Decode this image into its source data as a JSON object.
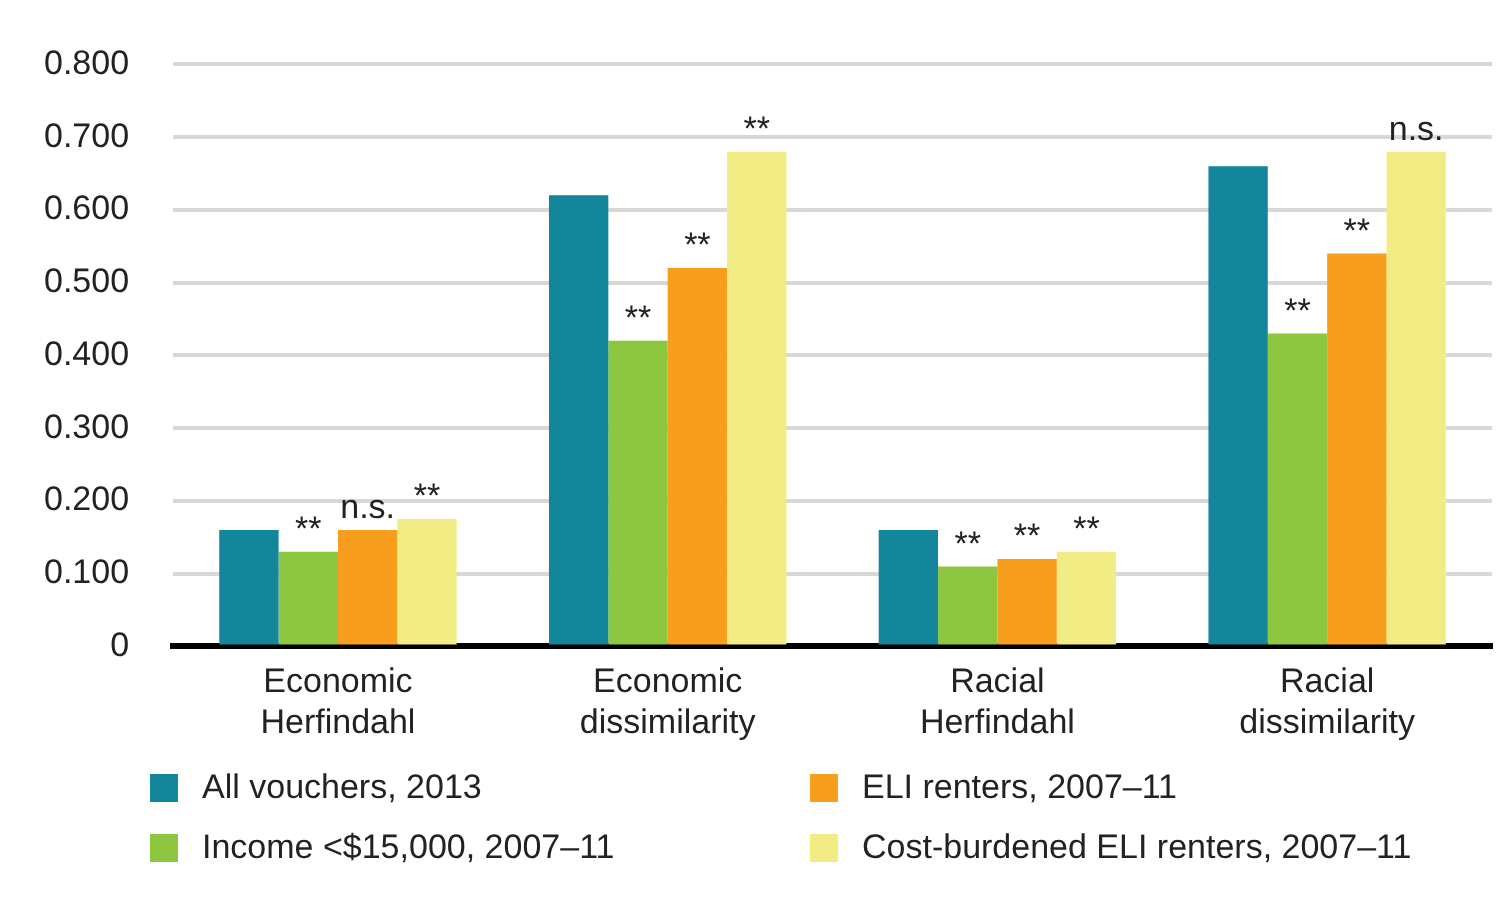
{
  "chart_data": {
    "type": "bar",
    "categories": [
      "Economic Herfindahl",
      "Economic dissimilarity",
      "Racial Herfindahl",
      "Racial dissimilarity"
    ],
    "series": [
      {
        "name": "All vouchers, 2013",
        "color": "#13869b",
        "values": [
          0.16,
          0.62,
          0.16,
          0.66
        ]
      },
      {
        "name": "Income <$15,000, 2007–11",
        "color": "#8dc63f",
        "values": [
          0.13,
          0.42,
          0.11,
          0.43
        ],
        "value_labels": [
          "**",
          "**",
          "**",
          "**"
        ]
      },
      {
        "name": "ELI renters, 2007–11",
        "color": "#f79e1e",
        "values": [
          0.16,
          0.52,
          0.12,
          0.54
        ],
        "value_labels": [
          "n.s.",
          "**",
          "**",
          "**"
        ]
      },
      {
        "name": "Cost-burdened ELI renters, 2007–11",
        "color": "#f1ec83",
        "values": [
          0.175,
          0.68,
          0.13,
          0.68
        ],
        "value_labels": [
          "**",
          "**",
          "**",
          "n.s."
        ]
      }
    ],
    "ylim": [
      0,
      0.8
    ],
    "yticks": [
      0,
      {
        "value": 0.1,
        "label": "0.100"
      },
      {
        "value": 0.2,
        "label": "0.200"
      },
      {
        "value": 0.3,
        "label": "0.300"
      },
      {
        "value": 0.4,
        "label": "0.400"
      },
      {
        "value": 0.5,
        "label": "0.500"
      },
      {
        "value": 0.6,
        "label": "0.600"
      },
      {
        "value": 0.7,
        "label": "0.700"
      },
      {
        "value": 0.8,
        "label": "0.800"
      }
    ],
    "grid": "y",
    "legend": "bottom"
  }
}
